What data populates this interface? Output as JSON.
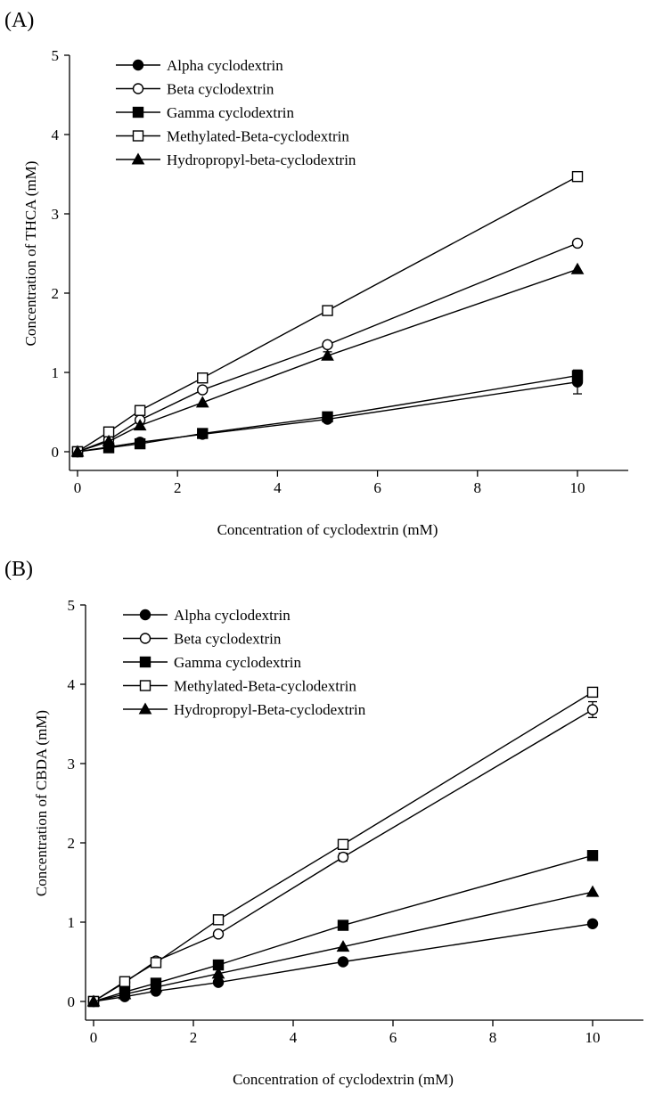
{
  "chart_data": [
    {
      "type": "line",
      "panel_label": "(A)",
      "title": "",
      "xlabel": "Concentration of cyclodextrin (mM)",
      "ylabel": "Concentration of THCA (mM)",
      "xlim": [
        0,
        11
      ],
      "ylim": [
        0,
        5
      ],
      "xticks": [
        0,
        2,
        4,
        6,
        8,
        10
      ],
      "yticks": [
        0,
        1,
        2,
        3,
        4,
        5
      ],
      "grid": false,
      "legend_position": "top-left",
      "x": [
        0,
        0.625,
        1.25,
        2.5,
        5,
        10
      ],
      "series": [
        {
          "name": "Alpha cyclodextrin",
          "marker": "circle-filled",
          "values": [
            0,
            0.06,
            0.12,
            0.22,
            0.41,
            0.88
          ],
          "errors": [
            0,
            0,
            0,
            0,
            0.02,
            0.15
          ]
        },
        {
          "name": "Beta cyclodextrin",
          "marker": "circle-open",
          "values": [
            0,
            0.15,
            0.4,
            0.78,
            1.35,
            2.63
          ],
          "errors": [
            0,
            0,
            0,
            0,
            0,
            0
          ]
        },
        {
          "name": "Gamma cyclodextrin",
          "marker": "square-filled",
          "values": [
            0,
            0.05,
            0.1,
            0.23,
            0.44,
            0.96
          ],
          "errors": [
            0,
            0,
            0,
            0,
            0,
            0.05
          ]
        },
        {
          "name": "Methylated-Beta-cyclodextrin",
          "marker": "square-open",
          "values": [
            0,
            0.25,
            0.52,
            0.93,
            1.78,
            3.47
          ],
          "errors": [
            0,
            0,
            0,
            0,
            0,
            0.03
          ]
        },
        {
          "name": "Hydropropyl-beta-cyclodextrin",
          "marker": "triangle-filled",
          "values": [
            0,
            0.13,
            0.33,
            0.62,
            1.21,
            2.3
          ],
          "errors": [
            0,
            0,
            0,
            0,
            0.05,
            0
          ]
        }
      ]
    },
    {
      "type": "line",
      "panel_label": "(B)",
      "title": "",
      "xlabel": "Concentration of cyclodextrin (mM)",
      "ylabel": "Concentration of CBDA (mM)",
      "xlim": [
        0,
        11
      ],
      "ylim": [
        0,
        5
      ],
      "xticks": [
        0,
        2,
        4,
        6,
        8,
        10
      ],
      "yticks": [
        0,
        1,
        2,
        3,
        4,
        5
      ],
      "grid": false,
      "legend_position": "top-left",
      "x": [
        0,
        0.625,
        1.25,
        2.5,
        5,
        10
      ],
      "series": [
        {
          "name": "Alpha cyclodextrin",
          "marker": "circle-filled",
          "values": [
            0,
            0.06,
            0.13,
            0.24,
            0.5,
            0.98
          ],
          "errors": [
            0,
            0,
            0,
            0,
            0,
            0.02
          ]
        },
        {
          "name": "Beta cyclodextrin",
          "marker": "circle-open",
          "values": [
            0,
            0.24,
            0.51,
            0.85,
            1.82,
            3.68
          ],
          "errors": [
            0,
            0,
            0,
            0,
            0.05,
            0.1
          ]
        },
        {
          "name": "Gamma cyclodextrin",
          "marker": "square-filled",
          "values": [
            0,
            0.12,
            0.23,
            0.46,
            0.96,
            1.84
          ],
          "errors": [
            0,
            0,
            0,
            0,
            0,
            0.02
          ]
        },
        {
          "name": "Methylated-Beta-cyclodextrin",
          "marker": "square-open",
          "values": [
            0,
            0.25,
            0.49,
            1.03,
            1.98,
            3.9
          ],
          "errors": [
            0,
            0,
            0,
            0,
            0,
            0.04
          ]
        },
        {
          "name": "Hydropropyl-Beta-cyclodextrin",
          "marker": "triangle-filled",
          "values": [
            0,
            0.09,
            0.18,
            0.35,
            0.69,
            1.38
          ],
          "errors": [
            0,
            0,
            0,
            0,
            0,
            0
          ]
        }
      ]
    }
  ]
}
